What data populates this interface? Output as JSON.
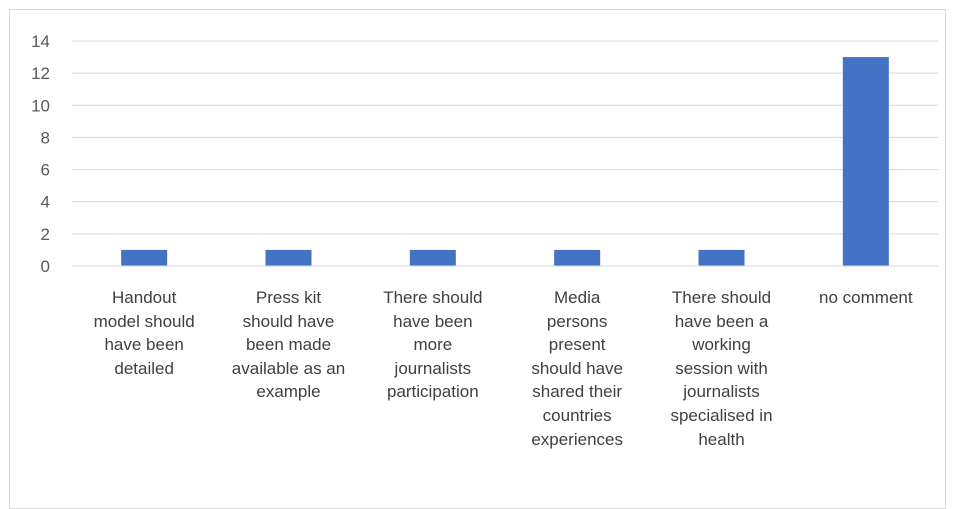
{
  "chart_data": {
    "type": "bar",
    "categories": [
      "Handout\nmodel should\nhave been\ndetailed",
      "Press kit\nshould have\nbeen made\navailable as an\nexample",
      "There should\nhave been\nmore\njournalists\nparticipation",
      "Media\npersons\npresent\nshould have\nshared their\ncountries\nexperiences",
      "There should\nhave been a\nworking\nsession with\njournalists\nspecialised in\nhealth",
      "no comment"
    ],
    "values": [
      1,
      1,
      1,
      1,
      1,
      13
    ],
    "ylim": [
      0,
      14
    ],
    "yticks": [
      "0",
      "2",
      "4",
      "6",
      "8",
      "10",
      "12",
      "14"
    ],
    "grid": true,
    "bar_color": "#4472C4",
    "grid_color": "#d9d9d9",
    "title": "",
    "xlabel": "",
    "ylabel": ""
  }
}
